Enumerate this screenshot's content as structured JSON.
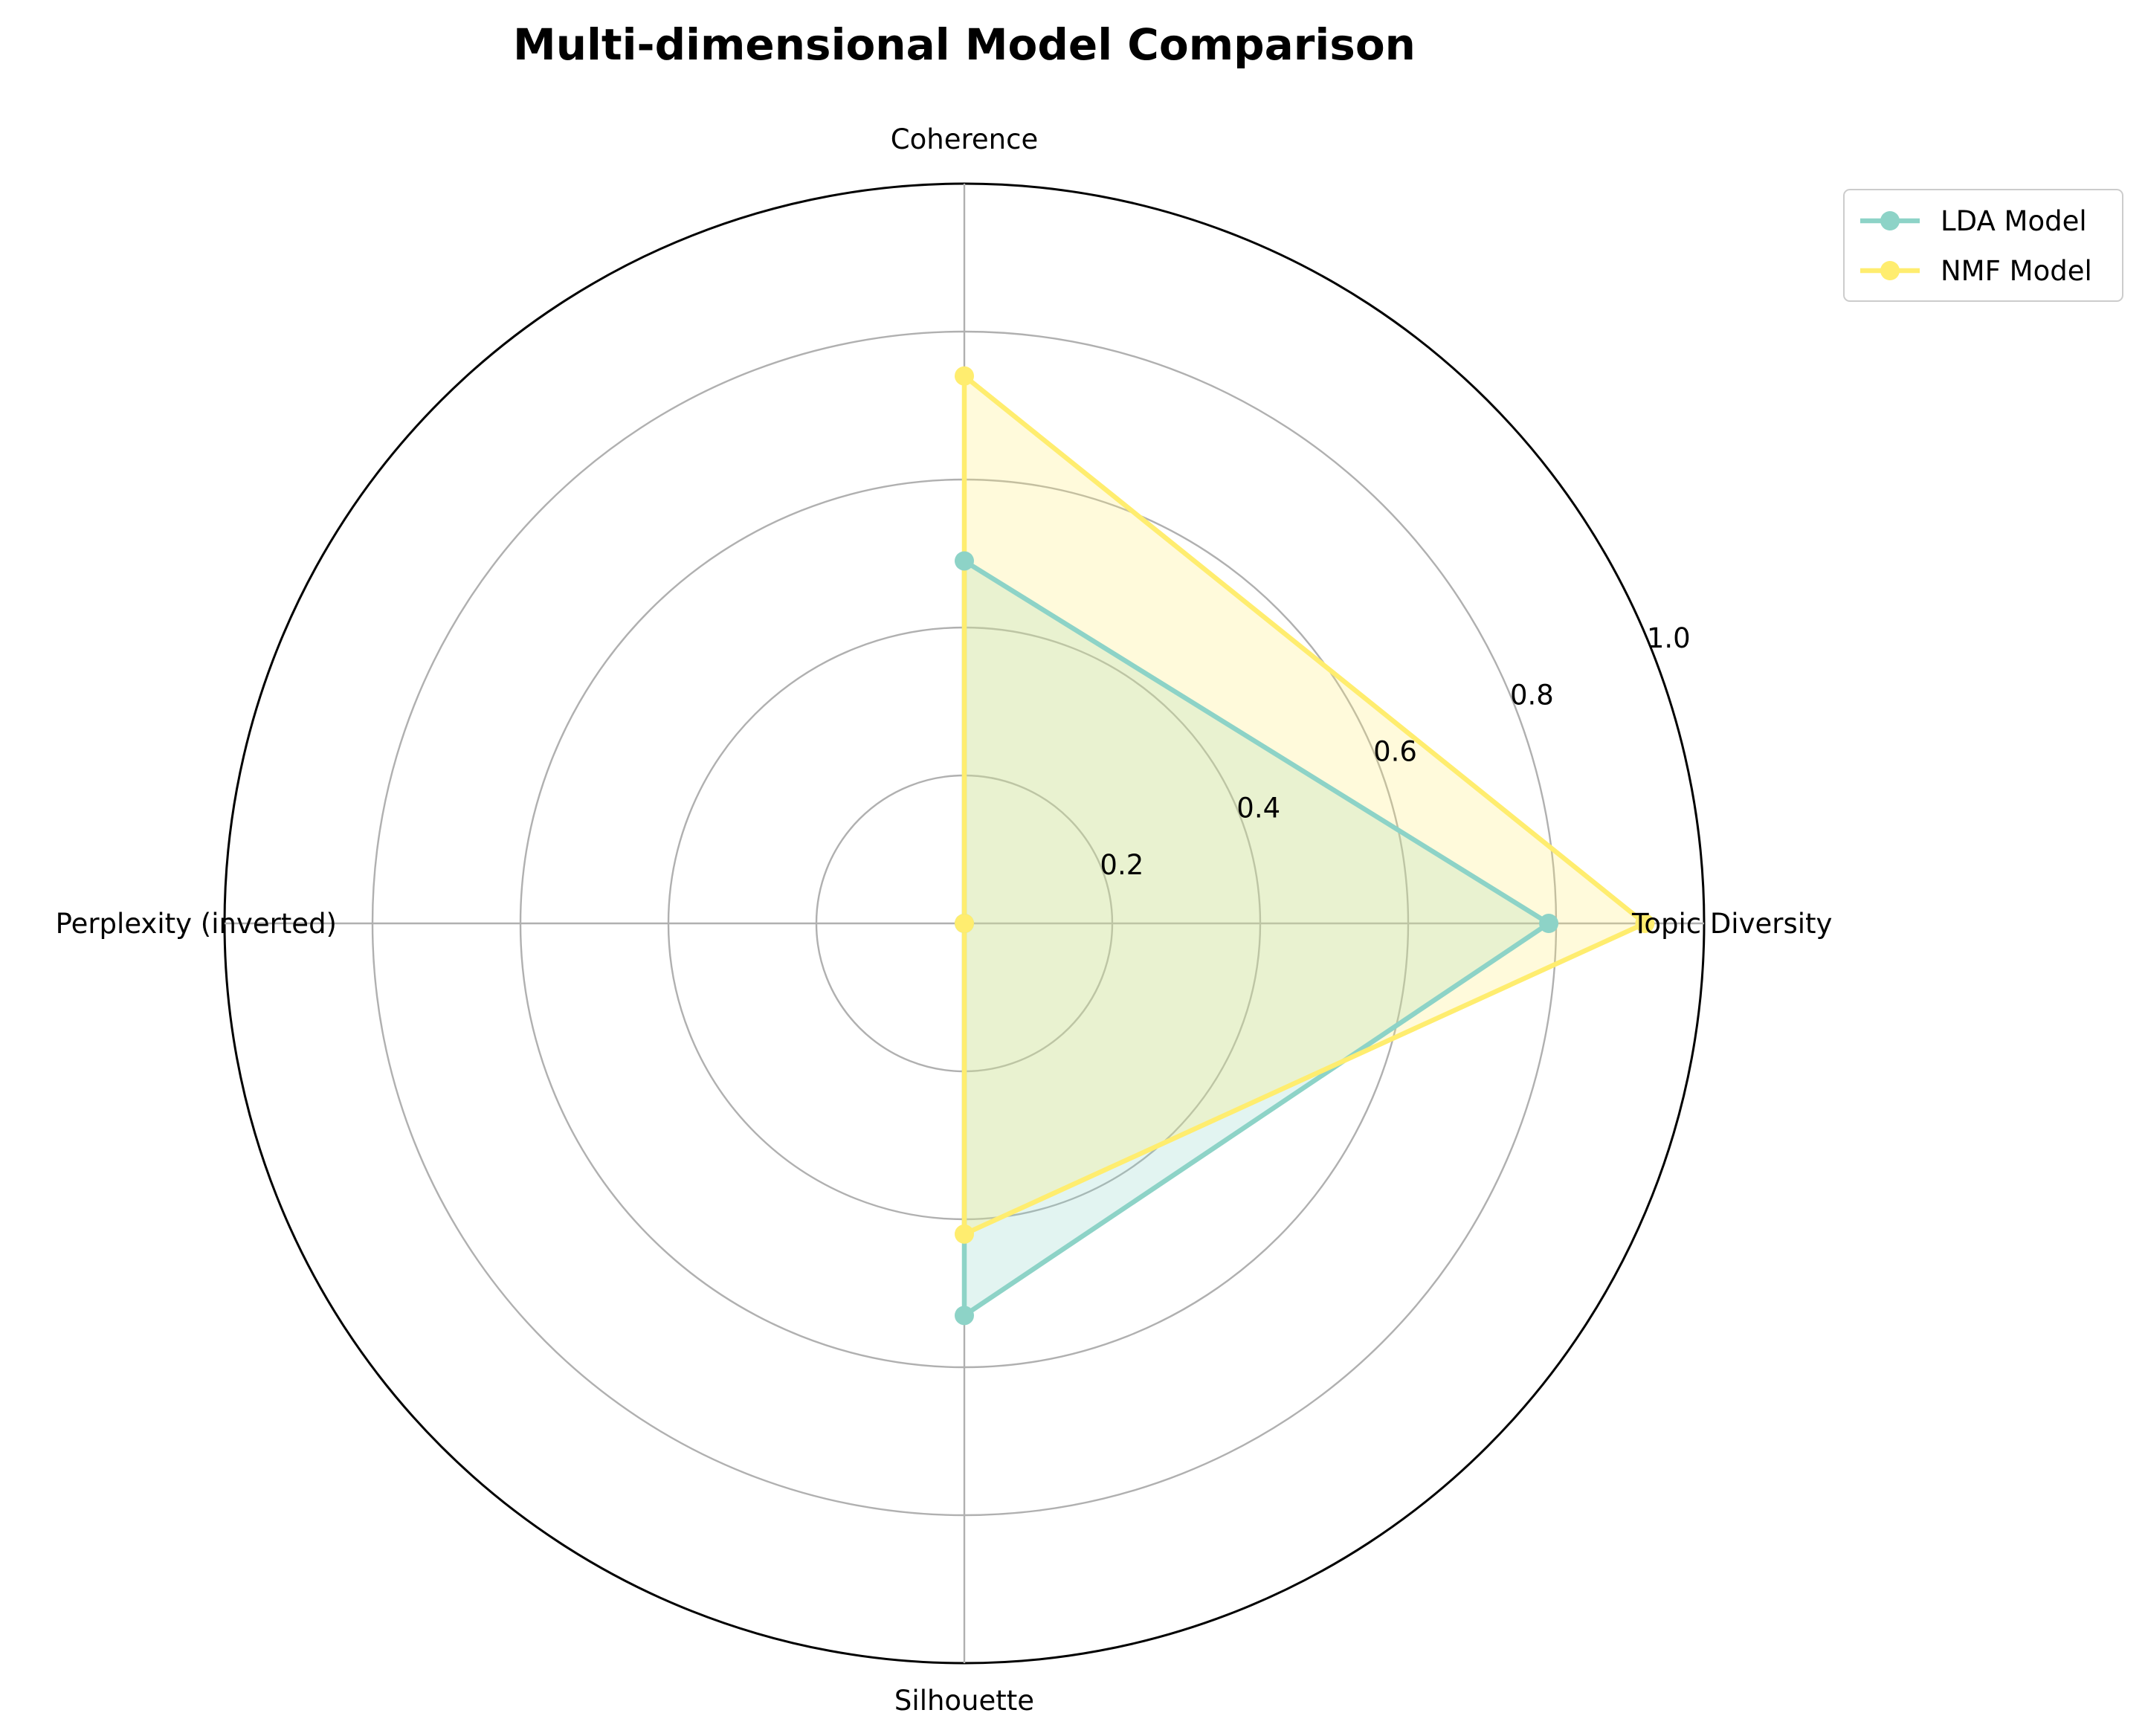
{
  "chart_data": {
    "type": "radar",
    "title": "Multi-dimensional Model Comparison",
    "axes": [
      "Topic Diversity",
      "Coherence",
      "Perplexity (inverted)",
      "Silhouette"
    ],
    "rlim": [
      0,
      1.0
    ],
    "rticks": [
      0.2,
      0.4,
      0.6,
      0.8,
      1.0
    ],
    "rtick_labels": [
      "0.2",
      "0.4",
      "0.6",
      "0.8",
      "1.0"
    ],
    "grid": true,
    "legend_position": "top-right",
    "series": [
      {
        "name": "LDA Model",
        "values": [
          0.79,
          0.49,
          0.0,
          0.53
        ],
        "color": "#8dd3c7",
        "fill_opacity": 0.25
      },
      {
        "name": "NMF Model",
        "values": [
          0.92,
          0.74,
          0.0,
          0.42
        ],
        "color": "#ffed6f",
        "fill_opacity": 0.25
      }
    ]
  }
}
